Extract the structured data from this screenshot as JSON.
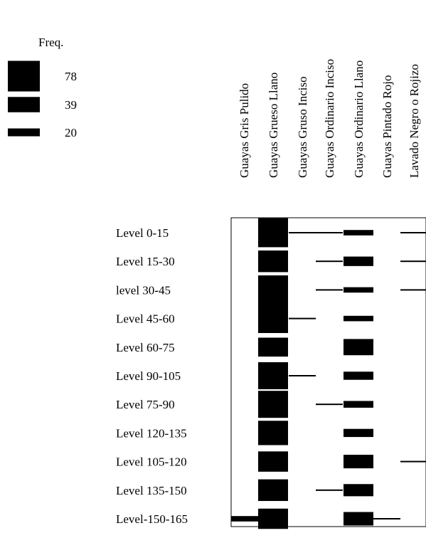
{
  "chart_data": {
    "type": "battleship",
    "title": "",
    "legend": {
      "title": "Freq.",
      "entries": [
        {
          "label": "78",
          "value": 78
        },
        {
          "label": "39",
          "value": 39
        },
        {
          "label": "20",
          "value": 20
        }
      ]
    },
    "columns": [
      "Guayas Gris Pulido",
      "Guayas Grueso Llano",
      "Guayas Gruso Inciso",
      "Guayas Ordinario Inciso",
      "Guayas Ordinario Llano",
      "Guayas Pintado Rojo",
      "Lavado Negro o Rojizo"
    ],
    "rows": [
      "Level 0-15",
      "Level 15-30",
      "level 30-45",
      "Level 45-60",
      "Level 60-75",
      "Level 90-105",
      "Level 75-90",
      "Level 120-135",
      "Level 105-120",
      "Level 135-150",
      "Level-150-165"
    ],
    "values": [
      [
        0,
        150,
        5,
        5,
        20,
        0,
        5
      ],
      [
        0,
        80,
        0,
        5,
        35,
        0,
        5
      ],
      [
        0,
        150,
        0,
        5,
        20,
        0,
        5
      ],
      [
        0,
        150,
        5,
        0,
        20,
        0,
        0
      ],
      [
        0,
        70,
        0,
        0,
        60,
        0,
        0
      ],
      [
        0,
        100,
        5,
        0,
        30,
        0,
        0
      ],
      [
        0,
        100,
        0,
        5,
        25,
        0,
        0
      ],
      [
        0,
        90,
        0,
        0,
        30,
        0,
        0
      ],
      [
        0,
        75,
        0,
        0,
        50,
        0,
        5
      ],
      [
        0,
        80,
        0,
        5,
        45,
        0,
        0
      ],
      [
        20,
        75,
        0,
        0,
        50,
        5,
        0
      ]
    ],
    "color": "#000000"
  }
}
